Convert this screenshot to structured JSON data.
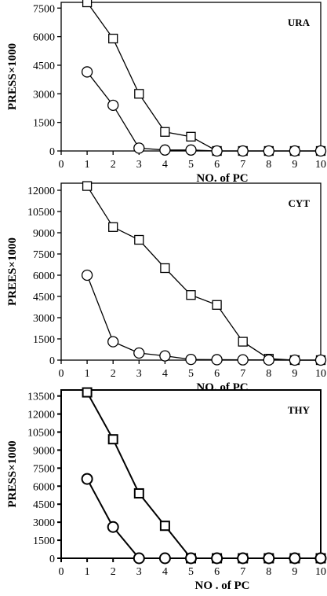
{
  "chart_data": [
    {
      "type": "line",
      "title": "URA",
      "xlabel": "NO. of  PC",
      "ylabel": "PRESS×1000",
      "xlim": [
        0,
        10
      ],
      "ylim": [
        0,
        7800
      ],
      "xticks": [
        "0",
        "1",
        "2",
        "3",
        "4",
        "5",
        "6",
        "7",
        "8",
        "9",
        "10"
      ],
      "yticks": [
        "0",
        "1500",
        "3000",
        "4500",
        "6000",
        "7500"
      ],
      "x": [
        1,
        2,
        3,
        4,
        5,
        6,
        7,
        8,
        9,
        10
      ],
      "series": [
        {
          "marker": "square",
          "values": [
            7800,
            5900,
            3000,
            1000,
            750,
            0,
            0,
            0,
            0,
            0
          ]
        },
        {
          "marker": "circle",
          "values": [
            4150,
            2400,
            150,
            50,
            50,
            0,
            0,
            0,
            0,
            0
          ]
        }
      ]
    },
    {
      "type": "line",
      "title": "CYT",
      "xlabel": "NO. of  PC",
      "ylabel": "PREES×1000",
      "xlim": [
        0,
        10
      ],
      "ylim": [
        0,
        12500
      ],
      "xticks": [
        "0",
        "1",
        "2",
        "3",
        "4",
        "5",
        "6",
        "7",
        "8",
        "9",
        "10"
      ],
      "yticks": [
        "0",
        "1500",
        "3000",
        "4500",
        "6000",
        "7500",
        "9000",
        "10500",
        "12000"
      ],
      "x": [
        1,
        2,
        3,
        4,
        5,
        6,
        7,
        8,
        9,
        10
      ],
      "series": [
        {
          "marker": "square",
          "values": [
            12300,
            9400,
            8500,
            6500,
            4600,
            3900,
            1300,
            100,
            0,
            0
          ]
        },
        {
          "marker": "circle",
          "values": [
            6000,
            1300,
            500,
            300,
            50,
            30,
            20,
            10,
            0,
            0
          ]
        }
      ]
    },
    {
      "type": "line",
      "title": "THY",
      "xlabel": "NO . of  PC",
      "ylabel": "PRESS×1000",
      "xlim": [
        0,
        10
      ],
      "ylim": [
        0,
        14000
      ],
      "xticks": [
        "0",
        "1",
        "2",
        "3",
        "4",
        "5",
        "6",
        "7",
        "8",
        "9",
        "10"
      ],
      "yticks": [
        "0",
        "1500",
        "3000",
        "4500",
        "6000",
        "7500",
        "9000",
        "10500",
        "12000",
        "13500"
      ],
      "x": [
        1,
        2,
        3,
        4,
        5,
        6,
        7,
        8,
        9,
        10
      ],
      "series": [
        {
          "marker": "square",
          "values": [
            13800,
            9900,
            5400,
            2700,
            0,
            0,
            0,
            0,
            0,
            0
          ]
        },
        {
          "marker": "circle",
          "values": [
            6600,
            2600,
            0,
            0,
            0,
            0,
            0,
            0,
            0,
            0
          ]
        }
      ]
    }
  ]
}
